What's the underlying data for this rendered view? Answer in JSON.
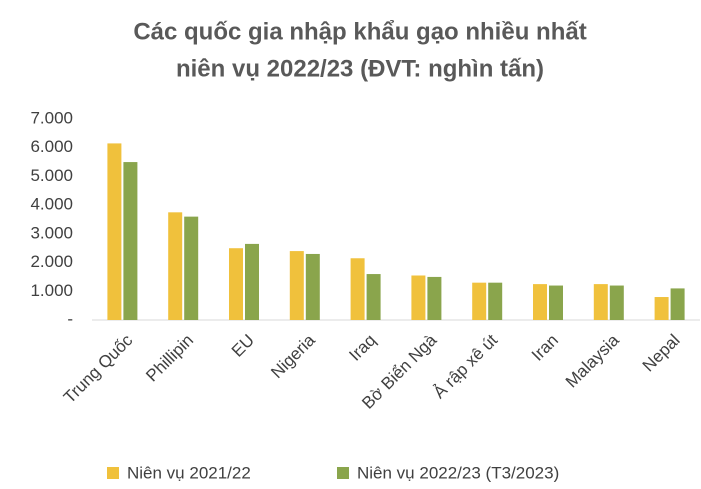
{
  "chart_data": {
    "type": "bar",
    "title": [
      "Các quốc gia nhập khẩu gạo nhiều nhất",
      "niên vụ 2022/23 (ĐVT: nghìn tấn)"
    ],
    "categories": [
      "Trung Quốc",
      "Phillipin",
      "EU",
      "Nigeria",
      "Iraq",
      "Bờ Biển Ngà",
      "Ả rập xê út",
      "Iran",
      "Malaysia",
      "Nepal"
    ],
    "series": [
      {
        "name": "Niên vụ 2021/22",
        "color": "#f0c13c",
        "values": [
          6150,
          3750,
          2500,
          2400,
          2150,
          1550,
          1300,
          1250,
          1250,
          800
        ]
      },
      {
        "name": "Niên vụ 2022/23 (T3/2023)",
        "color": "#8aa54c",
        "values": [
          5500,
          3600,
          2650,
          2300,
          1600,
          1500,
          1300,
          1200,
          1200,
          1100
        ]
      }
    ],
    "ylim": [
      0,
      7000
    ],
    "yticks": [
      {
        "value": 0,
        "label": "-"
      },
      {
        "value": 1000,
        "label": "1.000"
      },
      {
        "value": 2000,
        "label": "2.000"
      },
      {
        "value": 3000,
        "label": "3.000"
      },
      {
        "value": 4000,
        "label": "4.000"
      },
      {
        "value": 5000,
        "label": "5.000"
      },
      {
        "value": 6000,
        "label": "6.000"
      },
      {
        "value": 7000,
        "label": "7.000"
      }
    ],
    "grid": false,
    "legend": "bottom"
  }
}
